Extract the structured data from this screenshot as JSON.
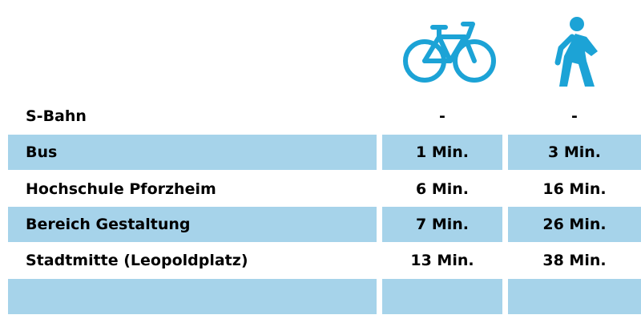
{
  "colors": {
    "icon": "#1ca3d6",
    "row_shade": "#a6d3ea",
    "text": "#000000"
  },
  "header": {
    "icons": [
      "bicycle-icon",
      "pedestrian-icon"
    ]
  },
  "rows": [
    {
      "label": "S-Bahn",
      "bike": "-",
      "walk": "-",
      "shaded": false
    },
    {
      "label": "Bus",
      "bike": "1 Min.",
      "walk": "3 Min.",
      "shaded": true
    },
    {
      "label": "Hochschule Pforzheim",
      "bike": "6 Min.",
      "walk": "16 Min.",
      "shaded": false
    },
    {
      "label": "Bereich Gestaltung",
      "bike": "7 Min.",
      "walk": "26 Min.",
      "shaded": true
    },
    {
      "label": "Stadtmitte (Leopoldplatz)",
      "bike": "13 Min.",
      "walk": "38 Min.",
      "shaded": false
    },
    {
      "label": "",
      "bike": "",
      "walk": "",
      "shaded": true
    }
  ]
}
